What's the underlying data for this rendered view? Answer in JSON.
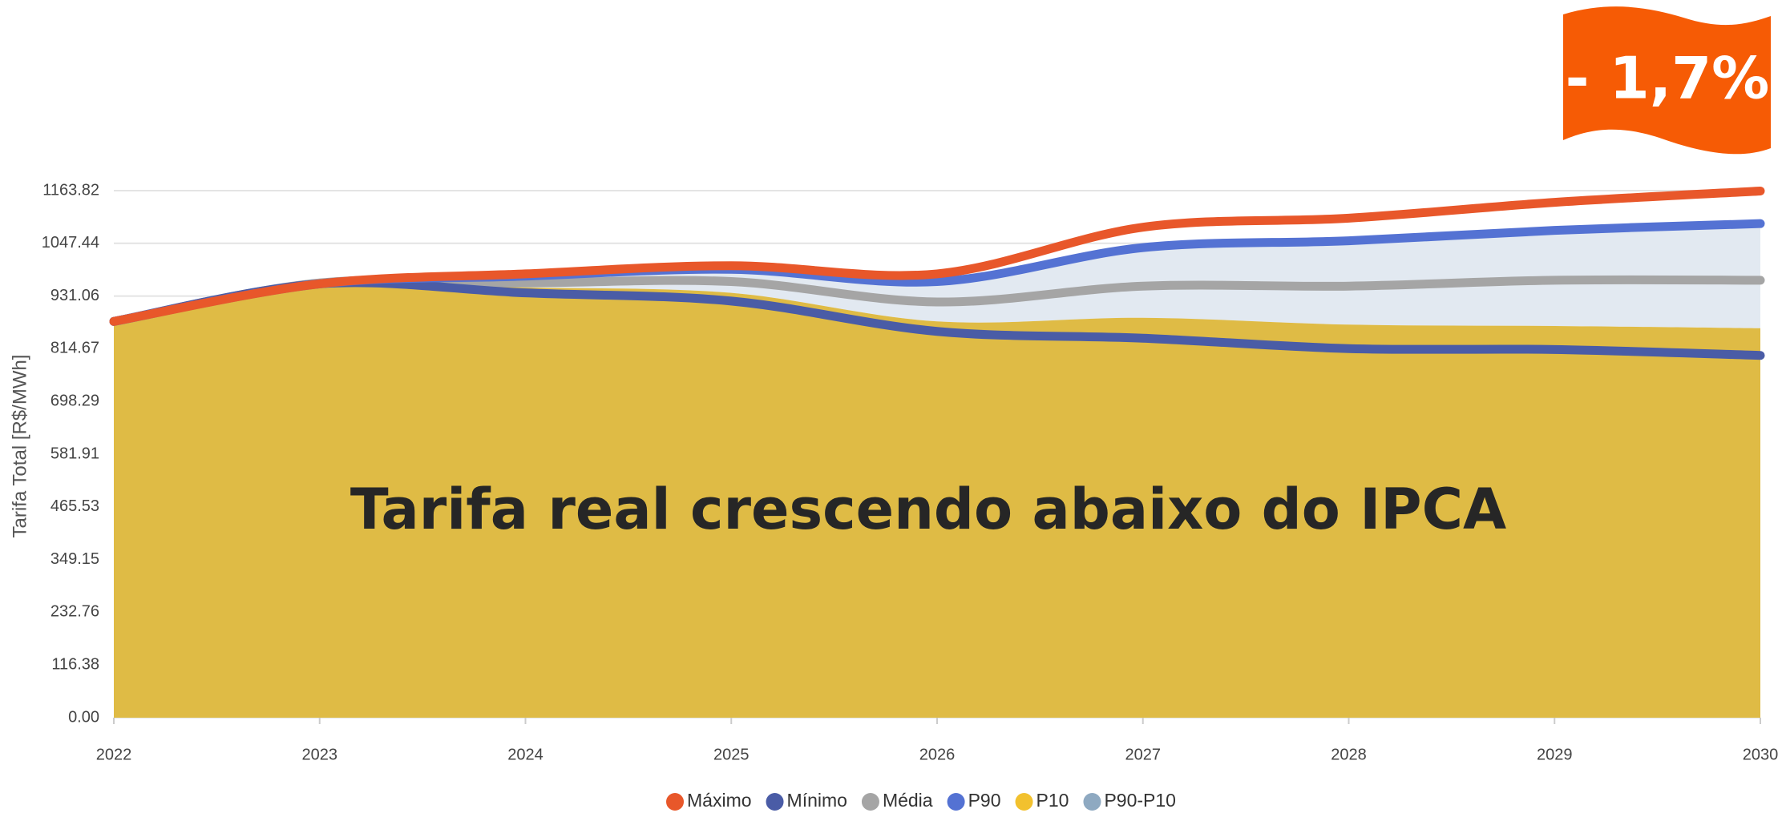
{
  "chart_data": {
    "type": "area-line",
    "y_label": "Tarifa Total [R$/MWh]",
    "annotation": "Tarifa real crescendo abaixo do IPCA",
    "badge": "- 1,7%",
    "x": [
      2022,
      2023,
      2024,
      2025,
      2026,
      2027,
      2028,
      2029,
      2030
    ],
    "xlim": [
      2022,
      2030
    ],
    "xticks": [
      2022,
      2023,
      2024,
      2025,
      2026,
      2027,
      2028,
      2029,
      2030
    ],
    "ylim": [
      0,
      1163.82
    ],
    "yticks": [
      {
        "value": 0,
        "label": "0.00"
      },
      116.38,
      232.76,
      349.15,
      465.53,
      581.91,
      698.29,
      814.67,
      931.06,
      1047.44,
      1163.82
    ],
    "grid": true,
    "series": [
      {
        "name": "Máximo",
        "color": "#e8572a",
        "values": [
          875,
          958,
          980,
          998,
          980,
          1083,
          1103,
          1138,
          1163
        ]
      },
      {
        "name": "Mínimo",
        "color": "#4a5ca6",
        "values": [
          875,
          958,
          938,
          920,
          853,
          838,
          815,
          813,
          800
        ]
      },
      {
        "name": "Média",
        "color": "#a5a5a5",
        "values": [
          875,
          960,
          960,
          963,
          918,
          953,
          953,
          966,
          966
        ]
      },
      {
        "name": "P90",
        "color": "#5472d3",
        "values": [
          875,
          958,
          975,
          990,
          963,
          1038,
          1053,
          1076,
          1091
        ]
      },
      {
        "name": "P10",
        "color": "#f2c12e",
        "values": [
          875,
          958,
          950,
          938,
          875,
          883,
          868,
          865,
          860
        ]
      },
      {
        "name": "P90-P10",
        "color": "#8ea9c1"
      }
    ]
  }
}
